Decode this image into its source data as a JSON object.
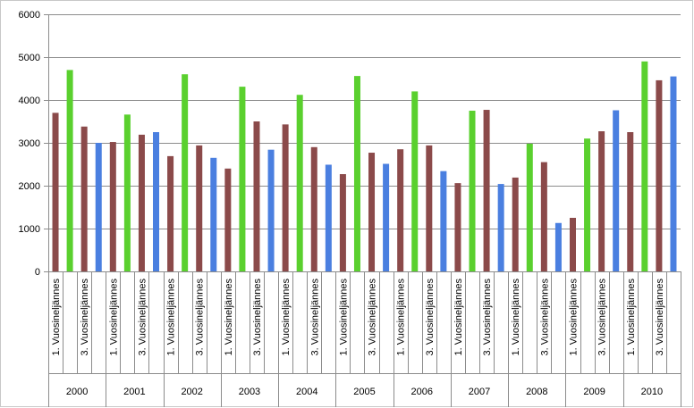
{
  "chart_data": {
    "type": "bar",
    "title": "",
    "xlabel": "",
    "ylabel": "",
    "ylim": [
      0,
      6000
    ],
    "yticks": [
      0,
      1000,
      2000,
      3000,
      4000,
      5000,
      6000
    ],
    "grid": true,
    "legend": "none",
    "quarter_tick_labels": [
      "1. Vuosineljännes",
      "",
      "3. Vuosineljännes",
      ""
    ],
    "colors": {
      "q1": "#8B4A4A",
      "q2": "#5AD02E",
      "q3": "#8B4A4A",
      "q4": "#4A7FE0"
    },
    "years": [
      "2000",
      "2001",
      "2002",
      "2003",
      "2004",
      "2005",
      "2006",
      "2007",
      "2008",
      "2009",
      "2010"
    ],
    "values": [
      [
        3700,
        4700,
        3380,
        3000
      ],
      [
        3020,
        3660,
        3190,
        3250
      ],
      [
        2690,
        4600,
        2940,
        2650
      ],
      [
        2400,
        4310,
        3500,
        2840
      ],
      [
        3430,
        4120,
        2900,
        2490
      ],
      [
        2270,
        4560,
        2770,
        2510
      ],
      [
        2850,
        4200,
        2940,
        2340
      ],
      [
        2060,
        3750,
        3770,
        2040
      ],
      [
        2190,
        2980,
        2550,
        1130
      ],
      [
        1250,
        3100,
        3270,
        3760
      ],
      [
        3250,
        4900,
        4460,
        4550
      ]
    ]
  }
}
